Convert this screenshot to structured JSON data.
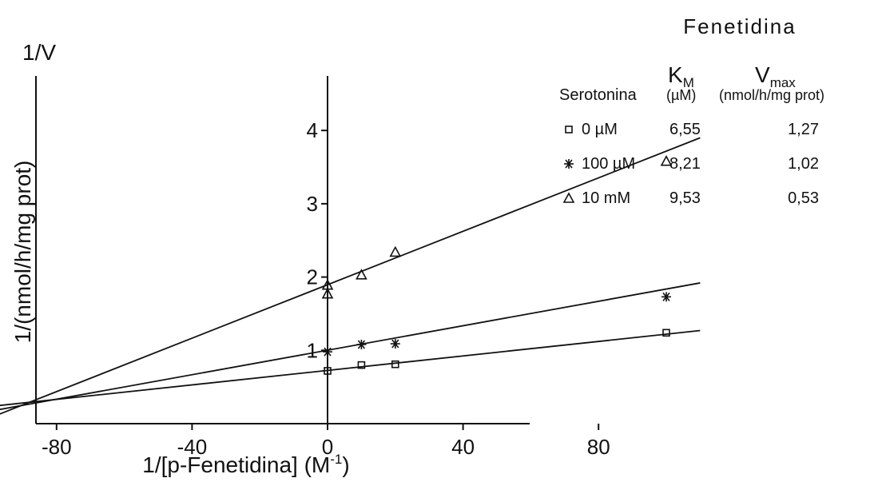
{
  "chart_data": {
    "type": "scatter",
    "xlabel_main": "1/[p-Fenetidina] (M",
    "xlabel_sup": "-1",
    "xlabel_close": ")",
    "ylabel": "1/(nmol/h/mg prot)",
    "corner_label": "1/V",
    "xlim": [
      -147,
      110
    ],
    "ylim": [
      0,
      5
    ],
    "x_ticks": [
      -120,
      -80,
      -40,
      0,
      40,
      80
    ],
    "y_ticks": [
      1,
      2,
      3,
      4
    ],
    "series": [
      {
        "name": "0 µM",
        "marker": "square",
        "points": [
          [
            0,
            0.72
          ],
          [
            10,
            0.8
          ],
          [
            20,
            0.81
          ],
          [
            100,
            1.24
          ]
        ],
        "line": {
          "x1": -147,
          "y1": 0,
          "x2": 110,
          "y2": 1.27
        }
      },
      {
        "name": "100 µM",
        "marker": "asterisk",
        "points": [
          [
            0,
            0.98
          ],
          [
            10,
            1.08
          ],
          [
            20,
            1.09
          ],
          [
            100,
            1.73
          ]
        ],
        "line": {
          "x1": -120,
          "y1": 0,
          "x2": 110,
          "y2": 1.92
        }
      },
      {
        "name": "10 mM",
        "marker": "triangle",
        "points": [
          [
            0,
            1.77
          ],
          [
            0,
            1.89
          ],
          [
            10,
            2.03
          ],
          [
            20,
            2.34
          ],
          [
            100,
            3.58
          ]
        ],
        "line": {
          "x1": -104,
          "y1": 0,
          "x2": 110,
          "y2": 3.9
        }
      }
    ]
  },
  "legend_table": {
    "title": "Fenetidina",
    "km_head": "K",
    "km_sub": "M",
    "km_unit": "(µM)",
    "vmax_head": "V",
    "vmax_sub": "max",
    "vmax_unit": "(nmol/h/mg prot)",
    "row_header": "Serotonina",
    "rows": [
      {
        "label": "0 µM",
        "km": "6,55",
        "vmax": "1,27"
      },
      {
        "label": "100 µM",
        "km": "8,21",
        "vmax": "1,02"
      },
      {
        "label": "10 mM",
        "km": "9,53",
        "vmax": "0,53"
      }
    ]
  }
}
